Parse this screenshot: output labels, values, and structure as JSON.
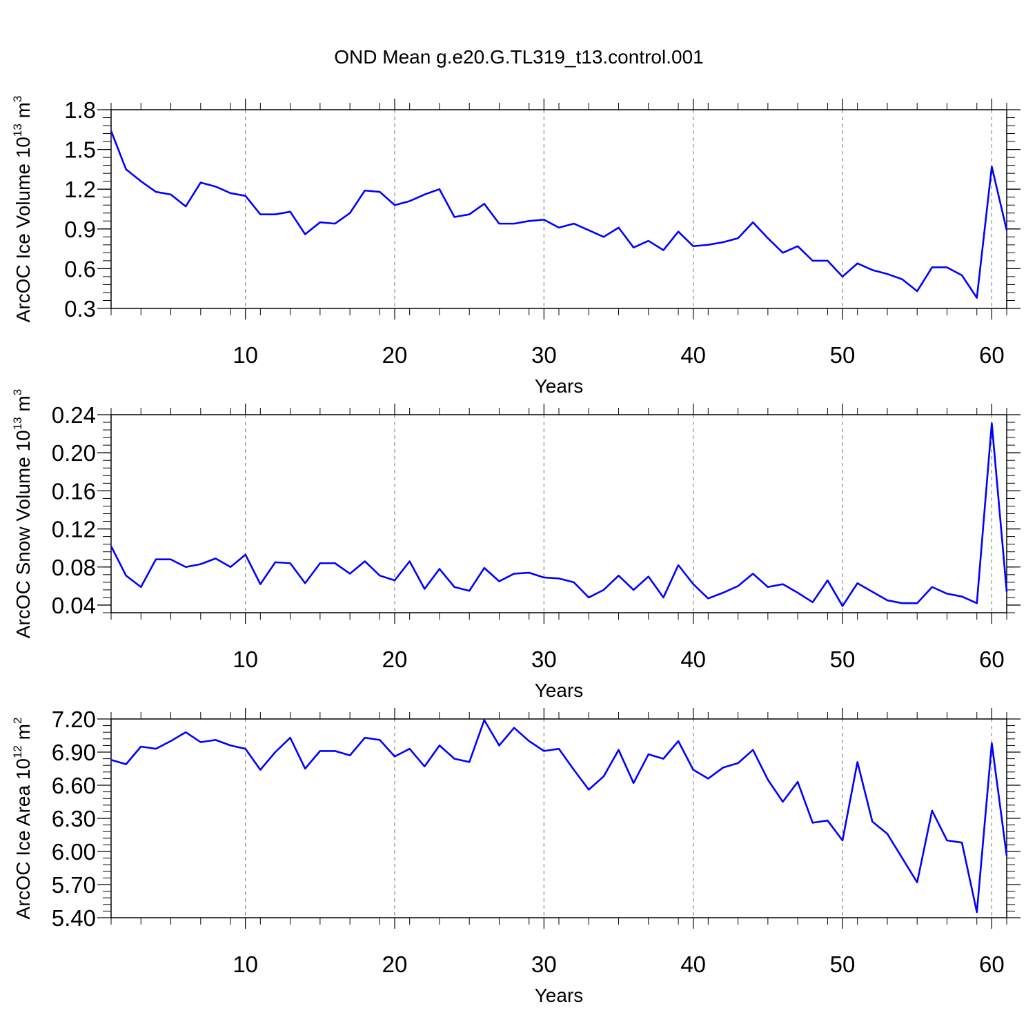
{
  "title": "OND Mean g.e20.G.TL319_t13.control.001",
  "chart_data": [
    {
      "type": "line",
      "ylabel": "ArcOC Ice Volume 10",
      "ylabel_exp": "13",
      "ylabel_unit": "m",
      "ylabel_unit_exp": "3",
      "xlabel": "Years",
      "xlim": [
        1,
        61
      ],
      "ylim": [
        0.3,
        1.8
      ],
      "yticks": [
        "0.3",
        "0.6",
        "0.9",
        "1.2",
        "1.5",
        "1.8"
      ],
      "xticks": [
        "10",
        "20",
        "30",
        "40",
        "50",
        "60"
      ],
      "series": [
        {
          "name": "ArcOC Ice Volume",
          "color": "#0000ff",
          "x": [
            1,
            2,
            3,
            4,
            5,
            6,
            7,
            8,
            9,
            10,
            11,
            12,
            13,
            14,
            15,
            16,
            17,
            18,
            19,
            20,
            21,
            22,
            23,
            24,
            25,
            26,
            27,
            28,
            29,
            30,
            31,
            32,
            33,
            34,
            35,
            36,
            37,
            38,
            39,
            40,
            41,
            42,
            43,
            44,
            45,
            46,
            47,
            48,
            49,
            50,
            51,
            52,
            53,
            54,
            55,
            56,
            57,
            58,
            59,
            60,
            61
          ],
          "values": [
            1.64,
            1.35,
            1.26,
            1.18,
            1.16,
            1.07,
            1.25,
            1.22,
            1.17,
            1.15,
            1.01,
            1.01,
            1.03,
            0.86,
            0.95,
            0.94,
            1.02,
            1.19,
            1.18,
            1.08,
            1.11,
            1.16,
            1.2,
            0.99,
            1.01,
            1.09,
            0.94,
            0.94,
            0.96,
            0.97,
            0.91,
            0.94,
            0.89,
            0.84,
            0.91,
            0.76,
            0.81,
            0.74,
            0.88,
            0.77,
            0.78,
            0.8,
            0.83,
            0.95,
            0.83,
            0.72,
            0.77,
            0.66,
            0.66,
            0.54,
            0.64,
            0.59,
            0.56,
            0.52,
            0.43,
            0.61,
            0.61,
            0.55,
            0.38,
            1.37,
            0.89
          ]
        }
      ]
    },
    {
      "type": "line",
      "ylabel": "ArcOC Snow Volume 10",
      "ylabel_exp": "13",
      "ylabel_unit": "m",
      "ylabel_unit_exp": "3",
      "xlabel": "Years",
      "xlim": [
        1,
        61
      ],
      "ylim": [
        0.032,
        0.24
      ],
      "yticks": [
        "0.04",
        "0.08",
        "0.12",
        "0.16",
        "0.20",
        "0.24"
      ],
      "xticks": [
        "10",
        "20",
        "30",
        "40",
        "50",
        "60"
      ],
      "series": [
        {
          "name": "ArcOC Snow Volume",
          "color": "#0000ff",
          "x": [
            1,
            2,
            3,
            4,
            5,
            6,
            7,
            8,
            9,
            10,
            11,
            12,
            13,
            14,
            15,
            16,
            17,
            18,
            19,
            20,
            21,
            22,
            23,
            24,
            25,
            26,
            27,
            28,
            29,
            30,
            31,
            32,
            33,
            34,
            35,
            36,
            37,
            38,
            39,
            40,
            41,
            42,
            43,
            44,
            45,
            46,
            47,
            48,
            49,
            50,
            51,
            52,
            53,
            54,
            55,
            56,
            57,
            58,
            59,
            60,
            61
          ],
          "values": [
            0.102,
            0.071,
            0.059,
            0.088,
            0.088,
            0.08,
            0.083,
            0.089,
            0.08,
            0.093,
            0.062,
            0.085,
            0.084,
            0.063,
            0.084,
            0.084,
            0.073,
            0.086,
            0.071,
            0.066,
            0.086,
            0.057,
            0.078,
            0.059,
            0.055,
            0.079,
            0.065,
            0.073,
            0.074,
            0.069,
            0.068,
            0.064,
            0.048,
            0.056,
            0.071,
            0.056,
            0.07,
            0.048,
            0.082,
            0.062,
            0.047,
            0.053,
            0.06,
            0.073,
            0.059,
            0.062,
            0.053,
            0.043,
            0.066,
            0.039,
            0.063,
            0.054,
            0.045,
            0.042,
            0.042,
            0.059,
            0.052,
            0.049,
            0.042,
            0.231,
            0.054
          ]
        }
      ]
    },
    {
      "type": "line",
      "ylabel": "ArcOC Ice Area 10",
      "ylabel_exp": "12",
      "ylabel_unit": "m",
      "ylabel_unit_exp": "2",
      "xlabel": "Years",
      "xlim": [
        1,
        61
      ],
      "ylim": [
        5.4,
        7.2
      ],
      "yticks": [
        "5.40",
        "5.70",
        "6.00",
        "6.30",
        "6.60",
        "6.90",
        "7.20"
      ],
      "xticks": [
        "10",
        "20",
        "30",
        "40",
        "50",
        "60"
      ],
      "series": [
        {
          "name": "ArcOC Ice Area",
          "color": "#0000ff",
          "x": [
            1,
            2,
            3,
            4,
            5,
            6,
            7,
            8,
            9,
            10,
            11,
            12,
            13,
            14,
            15,
            16,
            17,
            18,
            19,
            20,
            21,
            22,
            23,
            24,
            25,
            26,
            27,
            28,
            29,
            30,
            31,
            32,
            33,
            34,
            35,
            36,
            37,
            38,
            39,
            40,
            41,
            42,
            43,
            44,
            45,
            46,
            47,
            48,
            49,
            50,
            51,
            52,
            53,
            54,
            55,
            56,
            57,
            58,
            59,
            60,
            61
          ],
          "values": [
            6.83,
            6.79,
            6.95,
            6.93,
            7.0,
            7.08,
            6.99,
            7.01,
            6.96,
            6.93,
            6.74,
            6.9,
            7.03,
            6.75,
            6.91,
            6.91,
            6.87,
            7.03,
            7.01,
            6.86,
            6.93,
            6.77,
            6.96,
            6.84,
            6.81,
            7.19,
            6.96,
            7.12,
            7.0,
            6.91,
            6.93,
            6.74,
            6.56,
            6.68,
            6.92,
            6.62,
            6.88,
            6.84,
            7.0,
            6.74,
            6.66,
            6.76,
            6.8,
            6.92,
            6.65,
            6.45,
            6.63,
            6.26,
            6.28,
            6.1,
            6.81,
            6.27,
            6.16,
            5.94,
            5.72,
            6.37,
            6.1,
            6.08,
            5.45,
            6.98,
            5.96
          ]
        }
      ]
    }
  ]
}
